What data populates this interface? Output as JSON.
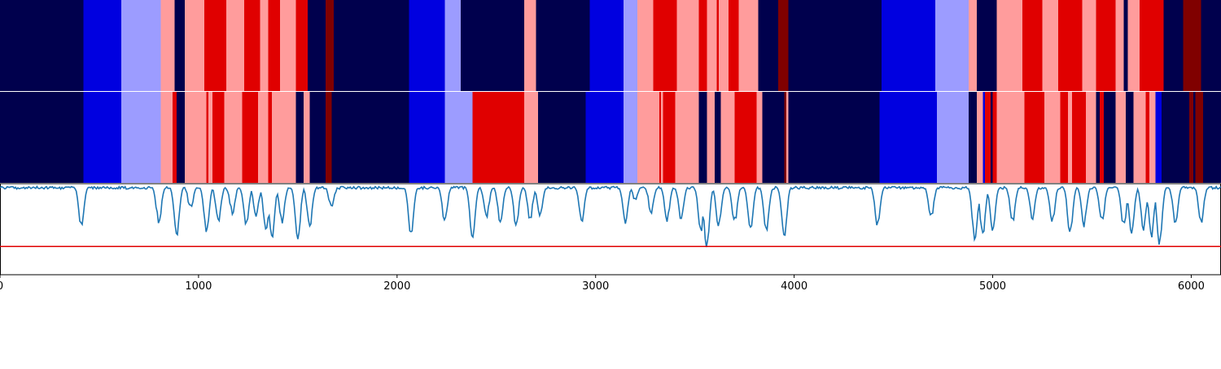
{
  "chart_data": {
    "type": "heatmap",
    "xlim": [
      0,
      6150
    ],
    "x_ticks": [
      0,
      1000,
      2000,
      3000,
      4000,
      5000,
      6000
    ],
    "palette": {
      "navy": "#00004d",
      "blue": "#0000e0",
      "lavender": "#9c9cff",
      "pink": "#ff9c9c",
      "red": "#e00000",
      "maroon": "#800000"
    },
    "rows": [
      {
        "segments": [
          [
            0,
            420,
            "navy"
          ],
          [
            420,
            610,
            "blue"
          ],
          [
            610,
            810,
            "lavender"
          ],
          [
            810,
            880,
            "pink"
          ],
          [
            880,
            930,
            "navy"
          ],
          [
            930,
            1030,
            "pink"
          ],
          [
            1030,
            1140,
            "red"
          ],
          [
            1140,
            1230,
            "pink"
          ],
          [
            1230,
            1310,
            "red"
          ],
          [
            1310,
            1350,
            "pink"
          ],
          [
            1350,
            1410,
            "red"
          ],
          [
            1410,
            1490,
            "pink"
          ],
          [
            1490,
            1550,
            "red"
          ],
          [
            1550,
            1640,
            "navy"
          ],
          [
            1640,
            1680,
            "maroon"
          ],
          [
            1680,
            2060,
            "navy"
          ],
          [
            2060,
            2240,
            "blue"
          ],
          [
            2240,
            2320,
            "lavender"
          ],
          [
            2320,
            2640,
            "navy"
          ],
          [
            2640,
            2700,
            "pink"
          ],
          [
            2700,
            2970,
            "navy"
          ],
          [
            2970,
            3140,
            "blue"
          ],
          [
            3140,
            3210,
            "lavender"
          ],
          [
            3210,
            3290,
            "pink"
          ],
          [
            3290,
            3410,
            "red"
          ],
          [
            3410,
            3520,
            "pink"
          ],
          [
            3520,
            3560,
            "red"
          ],
          [
            3560,
            3610,
            "pink"
          ],
          [
            3610,
            3620,
            "red"
          ],
          [
            3620,
            3670,
            "pink"
          ],
          [
            3670,
            3720,
            "red"
          ],
          [
            3720,
            3820,
            "pink"
          ],
          [
            3820,
            3920,
            "navy"
          ],
          [
            3920,
            3970,
            "maroon"
          ],
          [
            3970,
            4440,
            "navy"
          ],
          [
            4440,
            4710,
            "blue"
          ],
          [
            4710,
            4880,
            "lavender"
          ],
          [
            4880,
            4920,
            "pink"
          ],
          [
            4920,
            5020,
            "navy"
          ],
          [
            5020,
            5150,
            "pink"
          ],
          [
            5150,
            5250,
            "red"
          ],
          [
            5250,
            5330,
            "pink"
          ],
          [
            5330,
            5450,
            "red"
          ],
          [
            5450,
            5520,
            "pink"
          ],
          [
            5520,
            5620,
            "red"
          ],
          [
            5620,
            5660,
            "pink"
          ],
          [
            5660,
            5680,
            "navy"
          ],
          [
            5680,
            5740,
            "pink"
          ],
          [
            5740,
            5860,
            "red"
          ],
          [
            5860,
            5960,
            "navy"
          ],
          [
            5960,
            6050,
            "maroon"
          ],
          [
            6050,
            6150,
            "navy"
          ]
        ]
      },
      {
        "segments": [
          [
            0,
            420,
            "navy"
          ],
          [
            420,
            610,
            "blue"
          ],
          [
            610,
            810,
            "lavender"
          ],
          [
            810,
            870,
            "pink"
          ],
          [
            870,
            890,
            "red"
          ],
          [
            890,
            930,
            "navy"
          ],
          [
            930,
            1040,
            "pink"
          ],
          [
            1040,
            1050,
            "red"
          ],
          [
            1050,
            1070,
            "pink"
          ],
          [
            1070,
            1130,
            "red"
          ],
          [
            1130,
            1220,
            "pink"
          ],
          [
            1220,
            1300,
            "red"
          ],
          [
            1300,
            1350,
            "pink"
          ],
          [
            1350,
            1370,
            "red"
          ],
          [
            1370,
            1490,
            "pink"
          ],
          [
            1490,
            1530,
            "navy"
          ],
          [
            1530,
            1560,
            "pink"
          ],
          [
            1560,
            1640,
            "navy"
          ],
          [
            1640,
            1670,
            "maroon"
          ],
          [
            1670,
            2060,
            "navy"
          ],
          [
            2060,
            2240,
            "blue"
          ],
          [
            2240,
            2380,
            "lavender"
          ],
          [
            2380,
            2640,
            "red"
          ],
          [
            2640,
            2710,
            "pink"
          ],
          [
            2710,
            2950,
            "navy"
          ],
          [
            2950,
            3140,
            "blue"
          ],
          [
            3140,
            3210,
            "lavender"
          ],
          [
            3210,
            3320,
            "pink"
          ],
          [
            3320,
            3330,
            "red"
          ],
          [
            3330,
            3340,
            "pink"
          ],
          [
            3340,
            3400,
            "red"
          ],
          [
            3400,
            3520,
            "pink"
          ],
          [
            3520,
            3560,
            "navy"
          ],
          [
            3560,
            3600,
            "pink"
          ],
          [
            3600,
            3630,
            "navy"
          ],
          [
            3630,
            3700,
            "pink"
          ],
          [
            3700,
            3810,
            "red"
          ],
          [
            3810,
            3840,
            "pink"
          ],
          [
            3840,
            3950,
            "navy"
          ],
          [
            3950,
            3960,
            "maroon"
          ],
          [
            3960,
            3970,
            "pink"
          ],
          [
            3970,
            4430,
            "navy"
          ],
          [
            4430,
            4720,
            "blue"
          ],
          [
            4720,
            4880,
            "lavender"
          ],
          [
            4880,
            4920,
            "navy"
          ],
          [
            4920,
            4950,
            "pink"
          ],
          [
            4950,
            4960,
            "blue"
          ],
          [
            4960,
            4990,
            "red"
          ],
          [
            4990,
            5000,
            "navy"
          ],
          [
            5000,
            5020,
            "red"
          ],
          [
            5020,
            5160,
            "pink"
          ],
          [
            5160,
            5260,
            "red"
          ],
          [
            5260,
            5340,
            "pink"
          ],
          [
            5340,
            5380,
            "red"
          ],
          [
            5380,
            5400,
            "pink"
          ],
          [
            5400,
            5470,
            "red"
          ],
          [
            5470,
            5520,
            "pink"
          ],
          [
            5520,
            5540,
            "navy"
          ],
          [
            5540,
            5560,
            "red"
          ],
          [
            5560,
            5620,
            "navy"
          ],
          [
            5620,
            5670,
            "pink"
          ],
          [
            5670,
            5710,
            "navy"
          ],
          [
            5710,
            5770,
            "pink"
          ],
          [
            5770,
            5790,
            "red"
          ],
          [
            5790,
            5820,
            "pink"
          ],
          [
            5820,
            5850,
            "blue"
          ],
          [
            5850,
            5990,
            "navy"
          ],
          [
            5990,
            6010,
            "maroon"
          ],
          [
            6010,
            6020,
            "navy"
          ],
          [
            6020,
            6060,
            "maroon"
          ],
          [
            6060,
            6150,
            "navy"
          ]
        ]
      }
    ],
    "line_panel": {
      "ylim": [
        0,
        1
      ],
      "line_color": "#1f77b4",
      "threshold": 0.31,
      "threshold_color": "#e00000",
      "baseline": 0.97,
      "dips": [
        [
          410,
          0.5
        ],
        [
          800,
          0.55
        ],
        [
          890,
          0.4
        ],
        [
          960,
          0.7
        ],
        [
          1040,
          0.45
        ],
        [
          1100,
          0.55
        ],
        [
          1170,
          0.65
        ],
        [
          1240,
          0.5
        ],
        [
          1290,
          0.62
        ],
        [
          1340,
          0.42
        ],
        [
          1370,
          0.38
        ],
        [
          1420,
          0.55
        ],
        [
          1500,
          0.35
        ],
        [
          1560,
          0.5
        ],
        [
          1670,
          0.7
        ],
        [
          2070,
          0.4
        ],
        [
          2240,
          0.55
        ],
        [
          2380,
          0.35
        ],
        [
          2450,
          0.6
        ],
        [
          2520,
          0.55
        ],
        [
          2600,
          0.5
        ],
        [
          2670,
          0.58
        ],
        [
          2720,
          0.6
        ],
        [
          2930,
          0.55
        ],
        [
          3150,
          0.55
        ],
        [
          3200,
          0.8
        ],
        [
          3280,
          0.65
        ],
        [
          3360,
          0.58
        ],
        [
          3430,
          0.6
        ],
        [
          3530,
          0.45
        ],
        [
          3560,
          0.27
        ],
        [
          3620,
          0.5
        ],
        [
          3700,
          0.55
        ],
        [
          3780,
          0.48
        ],
        [
          3860,
          0.45
        ],
        [
          3950,
          0.38
        ],
        [
          4420,
          0.5
        ],
        [
          4690,
          0.6
        ],
        [
          4910,
          0.35
        ],
        [
          4950,
          0.4
        ],
        [
          5000,
          0.45
        ],
        [
          5100,
          0.55
        ],
        [
          5200,
          0.6
        ],
        [
          5300,
          0.55
        ],
        [
          5390,
          0.42
        ],
        [
          5460,
          0.52
        ],
        [
          5550,
          0.55
        ],
        [
          5660,
          0.5
        ],
        [
          5700,
          0.42
        ],
        [
          5760,
          0.48
        ],
        [
          5800,
          0.4
        ],
        [
          5840,
          0.32
        ],
        [
          5920,
          0.55
        ],
        [
          6050,
          0.55
        ]
      ]
    }
  }
}
